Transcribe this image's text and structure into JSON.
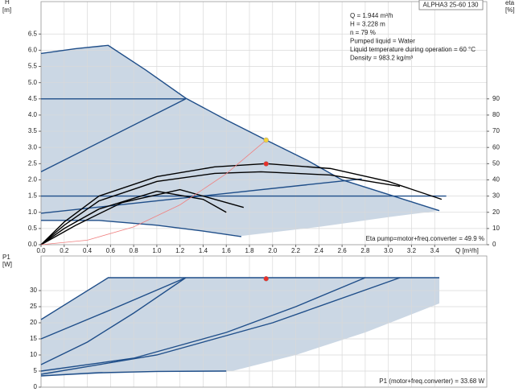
{
  "chart_data": [
    {
      "type": "line",
      "title": "ALPHA3 25-60 130",
      "xlabel": "Q [m³/h]",
      "ylabel": "H",
      "yunit": "[m]",
      "y2label": "eta",
      "y2unit": "[%]",
      "annotations": [
        "Q = 1.944 m³/h",
        "H = 3.228 m",
        "n = 79 %",
        "Pumped liquid = Water",
        "Liquid temperature during operation = 60 °C",
        "Density = 983.2 kg/m³"
      ],
      "note": "Eta pump=motor+freq.converter = 49.9 %",
      "xlim": [
        0,
        3.85
      ],
      "ylim": [
        0,
        7.5
      ],
      "y2lim": [
        0,
        150
      ],
      "grid": true,
      "xticks": [
        {
          "value": 0,
          "label": "0.0"
        },
        0.2,
        0.4,
        0.6,
        0.8,
        {
          "value": 1,
          "label": "1.0"
        },
        1.2,
        1.4,
        1.6,
        1.8,
        {
          "value": 2,
          "label": "2.0"
        },
        2.2,
        2.4,
        2.6,
        2.8,
        {
          "value": 3,
          "label": "3.0"
        },
        3.2,
        3.4
      ],
      "yticks": [
        {
          "value": 0,
          "label": "0.0"
        },
        0.5,
        {
          "value": 1,
          "label": "1.0"
        },
        1.5,
        {
          "value": 2,
          "label": "2.0"
        },
        2.5,
        {
          "value": 3,
          "label": "3.0"
        },
        3.5,
        {
          "value": 4,
          "label": "4.0"
        },
        4.5,
        {
          "value": 5,
          "label": "5.0"
        },
        5.5,
        {
          "value": 6,
          "label": "6.0"
        },
        6.5
      ],
      "y2ticks": [
        0,
        10,
        20,
        30,
        40,
        50,
        60,
        70,
        80,
        90
      ],
      "areas": [
        {
          "color": "#cbd7e4",
          "x": [
            0,
            0.3,
            0.58,
            0.9,
            1.25,
            1.6,
            1.944,
            2.3,
            2.6,
            3.0,
            3.44,
            3.0,
            2.4,
            1.73,
            1.4,
            1.0,
            0.5,
            0
          ],
          "values": [
            5.9,
            6.05,
            6.15,
            5.4,
            4.52,
            3.85,
            3.228,
            2.6,
            2.0,
            1.55,
            1.05,
            0.85,
            0.55,
            0.27,
            0.42,
            0.6,
            0.75,
            0.75
          ]
        }
      ],
      "series": [
        {
          "color": "#1f4e89",
          "x": [
            0,
            0.3,
            0.58,
            0.9,
            1.25,
            1.6,
            1.944,
            2.3,
            2.6,
            3.0,
            3.44
          ],
          "values": [
            5.9,
            6.05,
            6.15,
            5.4,
            4.52,
            3.85,
            3.228,
            2.6,
            2.0,
            1.55,
            1.05
          ]
        },
        {
          "color": "#1f4e89",
          "x": [
            0,
            1.25
          ],
          "values": [
            4.5,
            4.5
          ]
        },
        {
          "color": "#1f4e89",
          "x": [
            0,
            1.25
          ],
          "values": [
            2.25,
            4.5
          ]
        },
        {
          "color": "#1f4e89",
          "x": [
            0,
            3.5
          ],
          "values": [
            1.5,
            1.5
          ]
        },
        {
          "color": "#1f4e89",
          "x": [
            0,
            2.77
          ],
          "values": [
            0.97,
            2.03
          ]
        },
        {
          "color": "#1f4e89",
          "x": [
            0,
            0.5,
            1.0,
            1.4,
            1.73
          ],
          "values": [
            0.75,
            0.75,
            0.6,
            0.42,
            0.25
          ]
        },
        {
          "color": "#000000",
          "axis": "y2",
          "x": [
            0,
            0.2,
            0.5,
            1.0,
            1.5,
            1.944,
            2.5,
            3.0,
            3.46
          ],
          "values": [
            0,
            14,
            30,
            42,
            48,
            50,
            47,
            39,
            28
          ]
        },
        {
          "color": "#000000",
          "axis": "y2",
          "x": [
            0,
            0.2,
            0.5,
            1.0,
            1.5,
            1.9,
            2.5,
            3.1
          ],
          "values": [
            0,
            12,
            27,
            39,
            44,
            45,
            43,
            36
          ]
        },
        {
          "color": "#000000",
          "axis": "y2",
          "x": [
            0,
            0.2,
            0.5,
            1.0,
            1.4,
            1.6
          ],
          "values": [
            0,
            10,
            22,
            33,
            28,
            20
          ]
        },
        {
          "color": "#000000",
          "axis": "y2",
          "x": [
            0,
            0.3,
            0.7,
            1.2,
            1.75
          ],
          "values": [
            0,
            12,
            26,
            34,
            23
          ]
        },
        {
          "color": "#f08080",
          "x": [
            0,
            0.4,
            0.8,
            1.2,
            1.6,
            1.944
          ],
          "values": [
            0,
            0.14,
            0.55,
            1.23,
            2.19,
            3.228
          ]
        }
      ],
      "points": [
        {
          "color": "#f5d33a",
          "x": [
            1.944
          ],
          "values": [
            3.228
          ]
        },
        {
          "color": "#e8302a",
          "axis": "y2",
          "x": [
            1.944
          ],
          "values": [
            49.9
          ]
        }
      ]
    },
    {
      "type": "line",
      "ylabel": "P1",
      "yunit": "[W]",
      "note": "P1 (motor+freq.converter) = 33.68 W",
      "xlim": [
        0,
        3.85
      ],
      "ylim": [
        0,
        40.75
      ],
      "grid": true,
      "yticks": [
        0,
        5,
        10,
        15,
        20,
        25,
        30
      ],
      "areas": [
        {
          "color": "#cbd7e4",
          "x": [
            0,
            0.58,
            3.44,
            3.44,
            2.8,
            2.2,
            1.65,
            1.0,
            0
          ],
          "values": [
            21,
            34,
            34,
            26,
            17,
            10,
            5,
            4.7,
            3.5
          ]
        }
      ],
      "series": [
        {
          "color": "#1f4e89",
          "x": [
            0,
            0.58,
            3.44
          ],
          "values": [
            21,
            34,
            34
          ]
        },
        {
          "color": "#1f4e89",
          "x": [
            0,
            0.6,
            1.25
          ],
          "values": [
            15,
            24,
            34
          ]
        },
        {
          "color": "#1f4e89",
          "x": [
            0,
            0.4,
            0.8,
            1.25
          ],
          "values": [
            7,
            14,
            23,
            34
          ]
        },
        {
          "color": "#1f4e89",
          "x": [
            0,
            0.8,
            1.6,
            2.2,
            2.8
          ],
          "values": [
            5,
            9,
            17,
            25,
            34
          ]
        },
        {
          "color": "#1f4e89",
          "x": [
            0,
            1.0,
            2.0,
            3.1
          ],
          "values": [
            4,
            10,
            20,
            34
          ]
        },
        {
          "color": "#1f4e89",
          "x": [
            0,
            0.5,
            1.0,
            1.6
          ],
          "values": [
            3.5,
            4.5,
            4.9,
            5
          ]
        }
      ],
      "points": [
        {
          "color": "#e8302a",
          "x": [
            1.944
          ],
          "values": [
            33.68
          ]
        }
      ]
    }
  ]
}
